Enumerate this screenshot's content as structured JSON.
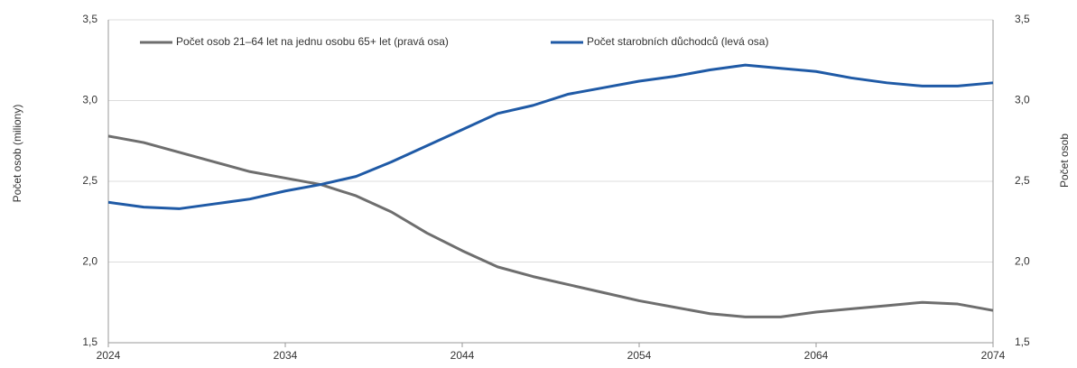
{
  "chart_data": {
    "type": "line",
    "ylabel": "Počet osob (miliony)",
    "y2label": "Počet osob",
    "x": [
      2024,
      2026,
      2028,
      2030,
      2032,
      2034,
      2036,
      2038,
      2040,
      2042,
      2044,
      2046,
      2048,
      2050,
      2052,
      2054,
      2056,
      2058,
      2060,
      2062,
      2064,
      2066,
      2068,
      2070,
      2072,
      2074
    ],
    "series": [
      {
        "name": "Počet osob 21–64 let na jednu osobu 65+ let (pravá osa)",
        "color": "#6e6e6e",
        "axis": "y2",
        "values": [
          2.78,
          2.74,
          2.68,
          2.62,
          2.56,
          2.52,
          2.48,
          2.41,
          2.31,
          2.18,
          2.07,
          1.97,
          1.91,
          1.86,
          1.81,
          1.76,
          1.72,
          1.68,
          1.66,
          1.66,
          1.69,
          1.71,
          1.73,
          1.75,
          1.74,
          1.7
        ]
      },
      {
        "name": "Počet starobních důchodců (levá osa)",
        "color": "#1f5aa6",
        "values": [
          2.37,
          2.34,
          2.33,
          2.36,
          2.39,
          2.44,
          2.48,
          2.53,
          2.62,
          2.72,
          2.82,
          2.92,
          2.97,
          3.04,
          3.08,
          3.12,
          3.15,
          3.19,
          3.22,
          3.2,
          3.18,
          3.14,
          3.11,
          3.09,
          3.09,
          3.11
        ]
      }
    ],
    "xlim": [
      2024,
      2074
    ],
    "xticks": [
      2024,
      2034,
      2044,
      2054,
      2064,
      2074
    ],
    "ylim": [
      1.5,
      3.5
    ],
    "yticks": [
      {
        "value": 1.5,
        "label": "1,5"
      },
      {
        "value": 2.0,
        "label": "2,0"
      },
      {
        "value": 2.5,
        "label": "2,5"
      },
      {
        "value": 3.0,
        "label": "3,0"
      },
      {
        "value": 3.5,
        "label": "3,5"
      }
    ],
    "y2lim": [
      1.5,
      3.5
    ],
    "y2ticks": [
      {
        "value": 1.5,
        "label": "1,5"
      },
      {
        "value": 2.0,
        "label": "2,0"
      },
      {
        "value": 2.5,
        "label": "2,5"
      },
      {
        "value": 3.0,
        "label": "3,0"
      },
      {
        "value": 3.5,
        "label": "3,5"
      }
    ],
    "grid": true
  }
}
